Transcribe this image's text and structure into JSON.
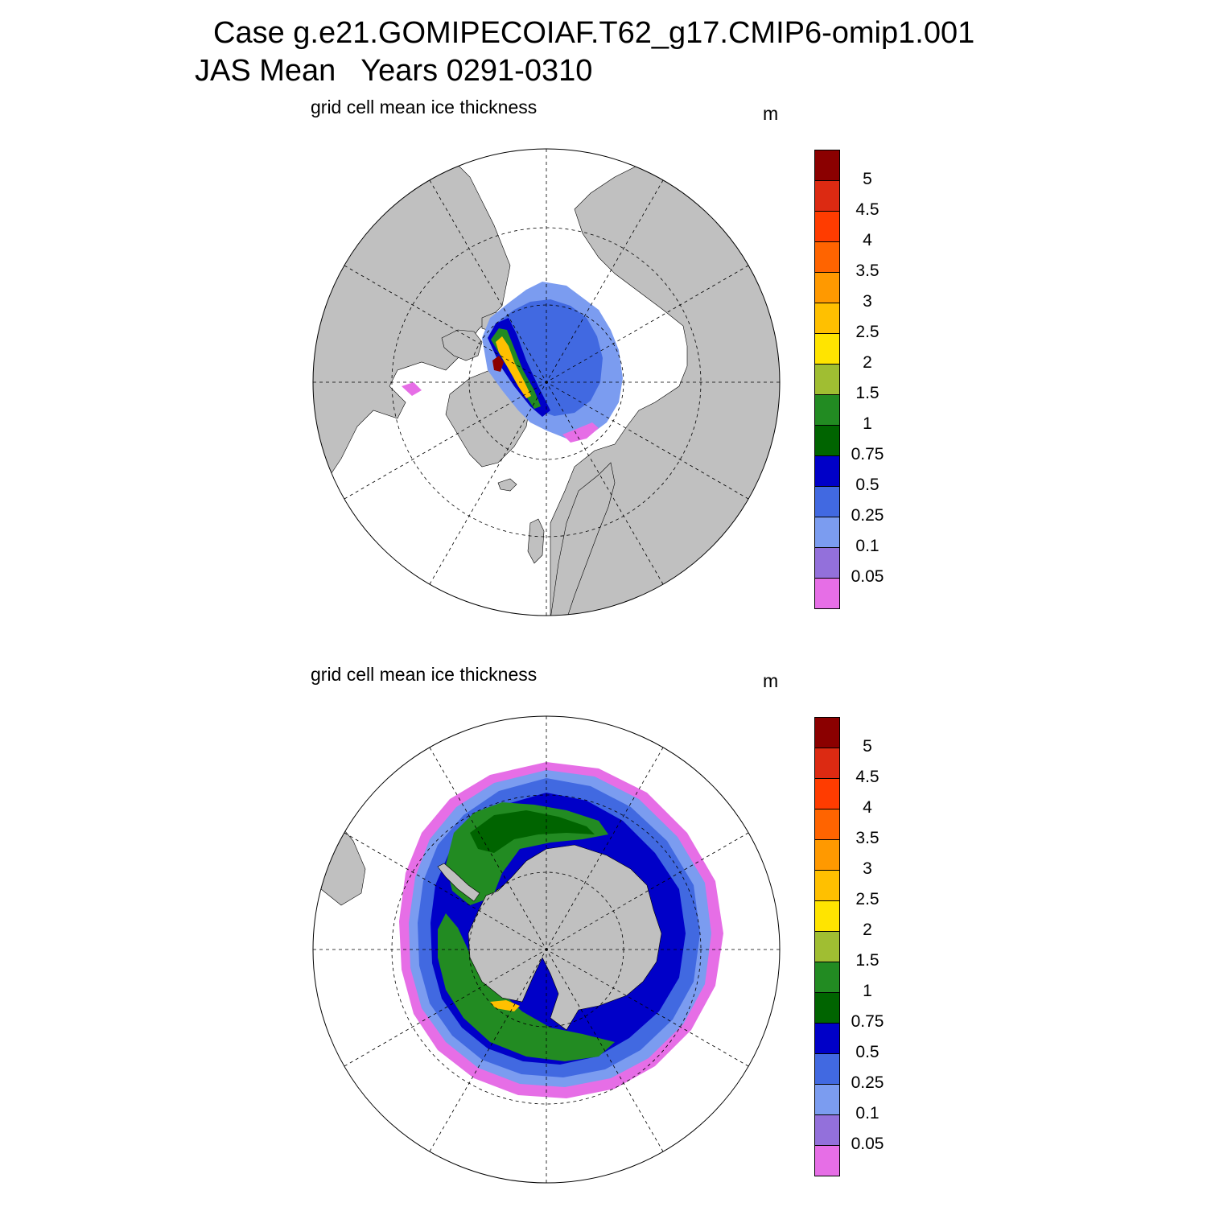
{
  "title": {
    "line1": "Case g.e21.GOMIPECOIAF.T62_g17.CMIP6-omip1.001",
    "line2": "JAS Mean   Years 0291-0310"
  },
  "panels": [
    {
      "id": "arctic",
      "variable": "grid cell mean ice thickness",
      "units": "m",
      "hemisphere": "north"
    },
    {
      "id": "antarctic",
      "variable": "grid cell mean ice thickness",
      "units": "m",
      "hemisphere": "south"
    }
  ],
  "legend": {
    "levels": [
      "5",
      "4.5",
      "4",
      "3.5",
      "3",
      "2.5",
      "2",
      "1.5",
      "1",
      "0.75",
      "0.5",
      "0.25",
      "0.1",
      "0.05"
    ],
    "colors": [
      "#8b0000",
      "#dc2a12",
      "#ff3c00",
      "#ff6400",
      "#ff9900",
      "#ffc000",
      "#ffe400",
      "#a0be32",
      "#228b22",
      "#006400",
      "#0000c8",
      "#4169e1",
      "#7b9cf0",
      "#9370db",
      "#e66ee6"
    ]
  },
  "map_colors": {
    "land": "#c0c0c0",
    "ocean": "#ffffff",
    "grid": "#000000"
  }
}
